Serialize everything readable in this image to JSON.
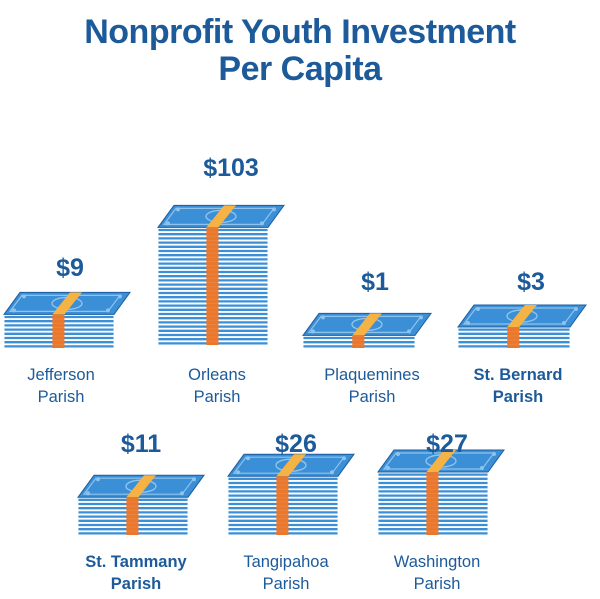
{
  "chart_data": {
    "type": "pictograph",
    "title_lines": [
      "Nonprofit Youth Investment",
      "Per Capita"
    ],
    "categories": [
      {
        "name_lines": [
          "Jefferson",
          "Parish"
        ],
        "value": 9,
        "value_label": "$9"
      },
      {
        "name_lines": [
          "Orleans",
          "Parish"
        ],
        "value": 103,
        "value_label": "$103"
      },
      {
        "name_lines": [
          "Plaquemines",
          "Parish"
        ],
        "value": 1,
        "value_label": "$1"
      },
      {
        "name_lines": [
          "St. Bernard",
          "Parish"
        ],
        "value": 3,
        "value_label": "$3"
      },
      {
        "name_lines": [
          "St. Tammany",
          "Parish"
        ],
        "value": 11,
        "value_label": "$11"
      },
      {
        "name_lines": [
          "Tangipahoa",
          "Parish"
        ],
        "value": 26,
        "value_label": "$26"
      },
      {
        "name_lines": [
          "Washington",
          "Parish"
        ],
        "value": 27,
        "value_label": "$27"
      }
    ]
  },
  "colors": {
    "title": "#1c5a9a",
    "bill_fill": "#3a8fd6",
    "bill_edge": "#1d5d9e",
    "bill_light": "#8fc3ec",
    "band": "#f5b245",
    "band_dark": "#e8782e"
  }
}
